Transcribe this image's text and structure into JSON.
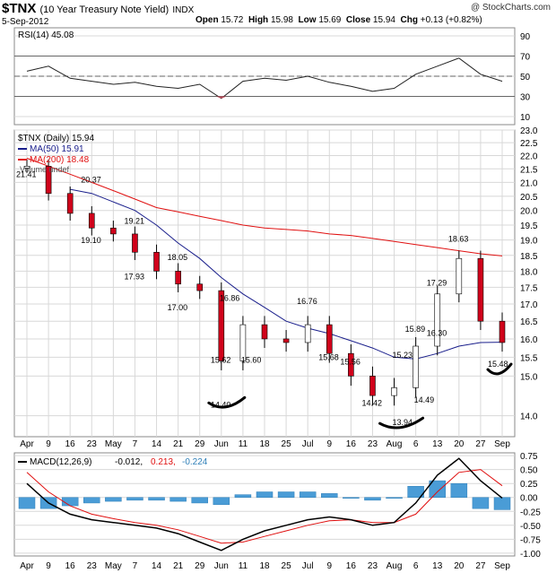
{
  "header": {
    "symbol": "$TNX",
    "name": "(10 Year Treasury Note Yield)",
    "exchange": "INDX",
    "date": "5-Sep-2012",
    "watermark": "@ StockCharts.com",
    "open_label": "Open",
    "open": "15.72",
    "high_label": "High",
    "high": "15.98",
    "low_label": "Low",
    "low": "15.69",
    "close_label": "Close",
    "close": "15.94",
    "chg_label": "Chg",
    "chg": "+0.13 (+0.82%)"
  },
  "colors": {
    "up": "#ffffff",
    "down": "#d0021b",
    "ma50": "#1a1f8c",
    "ma200": "#e01010",
    "macd": "#000000",
    "signal": "#e01010",
    "hist": "#4a9cd6",
    "grid": "#d8d8d8",
    "rsi_shade": "#c04b5a"
  },
  "rsi_panel": {
    "legend": "RSI(14) 45.08",
    "levels": [
      70,
      50,
      30
    ],
    "ticks": [
      "90",
      "70",
      "50",
      "30",
      "10"
    ]
  },
  "price_panel": {
    "legend": {
      "ticker": "$TNX (Daily) 15.94",
      "ma50": "MA(50) 15.91",
      "ma200": "MA(200) 18.48",
      "volume": "Volume undef"
    },
    "ticks": [
      "23.0",
      "22.5",
      "22.0",
      "21.5",
      "21.0",
      "20.5",
      "20.0",
      "19.5",
      "19.0",
      "18.5",
      "18.0",
      "17.5",
      "17.0",
      "16.5",
      "16.0",
      "15.5",
      "15.0",
      "14.0"
    ],
    "annotations": [
      "21.41",
      "20.37",
      "19.10",
      "19.21",
      "17.93",
      "18.05",
      "17.00",
      "16.86",
      "15.62",
      "15.60",
      "16.76",
      "15.68",
      "15.56",
      "14.42",
      "15.23",
      "15.89",
      "17.29",
      "16.30",
      "18.63",
      "15.48",
      "14.40",
      "13.94",
      "14.49"
    ]
  },
  "macd_panel": {
    "legend_label": "MACD(12,26,9)",
    "macd_value": "-0.012,",
    "signal_value": "0.213,",
    "hist_value": "-0.224",
    "ticks": [
      "0.75",
      "0.50",
      "0.25",
      "0.00",
      "-0.25",
      "-0.50",
      "-0.75",
      "-1.00"
    ]
  },
  "x_axis": {
    "labels": [
      "Apr",
      "9",
      "16",
      "23",
      "May",
      "7",
      "14",
      "21",
      "29",
      "Jun",
      "11",
      "18",
      "25",
      "Jul",
      "9",
      "16",
      "23",
      "Aug",
      "6",
      "13",
      "20",
      "27",
      "Sep"
    ]
  },
  "chart_data": {
    "type": "line",
    "title": "$TNX (10 Year Treasury Note Yield) INDX",
    "dates": [
      "Apr 2",
      "Apr 9",
      "Apr 16",
      "Apr 23",
      "Apr 30",
      "May 7",
      "May 14",
      "May 21",
      "May 29",
      "Jun 4",
      "Jun 11",
      "Jun 18",
      "Jun 25",
      "Jul 2",
      "Jul 9",
      "Jul 16",
      "Jul 23",
      "Jul 30",
      "Aug 6",
      "Aug 13",
      "Aug 20",
      "Aug 27",
      "Sep 5"
    ],
    "series": [
      {
        "name": "$TNX (Daily)",
        "values": [
          21.6,
          20.6,
          19.9,
          19.4,
          19.2,
          18.6,
          18.0,
          17.6,
          17.4,
          15.4,
          16.4,
          16.0,
          15.9,
          16.4,
          15.6,
          15.0,
          14.5,
          14.7,
          15.8,
          17.3,
          18.4,
          16.5,
          15.9
        ]
      },
      {
        "name": "MA(50)",
        "values": [
          null,
          null,
          20.75,
          20.6,
          20.3,
          20.0,
          19.5,
          18.9,
          18.4,
          17.8,
          17.3,
          16.9,
          16.5,
          16.3,
          16.15,
          15.95,
          15.75,
          15.5,
          15.45,
          15.6,
          15.8,
          15.9,
          15.91
        ]
      },
      {
        "name": "MA(200)",
        "values": [
          21.9,
          21.6,
          21.3,
          21.0,
          20.7,
          20.4,
          20.1,
          19.95,
          19.8,
          19.65,
          19.5,
          19.4,
          19.35,
          19.3,
          19.2,
          19.15,
          19.05,
          18.95,
          18.85,
          18.75,
          18.65,
          18.55,
          18.48
        ]
      }
    ],
    "ylim": [
      13.5,
      23.0
    ],
    "log_scale": true,
    "grid": true,
    "legend_placement": "top-left",
    "rsi": [
      55,
      60,
      48,
      45,
      42,
      44,
      40,
      38,
      42,
      28,
      45,
      48,
      46,
      50,
      44,
      40,
      35,
      38,
      52,
      60,
      68,
      52,
      45
    ],
    "macd": [
      0.25,
      -0.1,
      -0.3,
      -0.4,
      -0.45,
      -0.5,
      -0.55,
      -0.65,
      -0.8,
      -0.95,
      -0.75,
      -0.6,
      -0.5,
      -0.4,
      -0.35,
      -0.4,
      -0.5,
      -0.45,
      -0.1,
      0.4,
      0.7,
      0.3,
      -0.01
    ],
    "signal": [
      0.45,
      0.1,
      -0.15,
      -0.3,
      -0.38,
      -0.45,
      -0.5,
      -0.58,
      -0.7,
      -0.82,
      -0.8,
      -0.7,
      -0.6,
      -0.5,
      -0.42,
      -0.4,
      -0.45,
      -0.45,
      -0.3,
      0.1,
      0.45,
      0.5,
      0.21
    ]
  }
}
